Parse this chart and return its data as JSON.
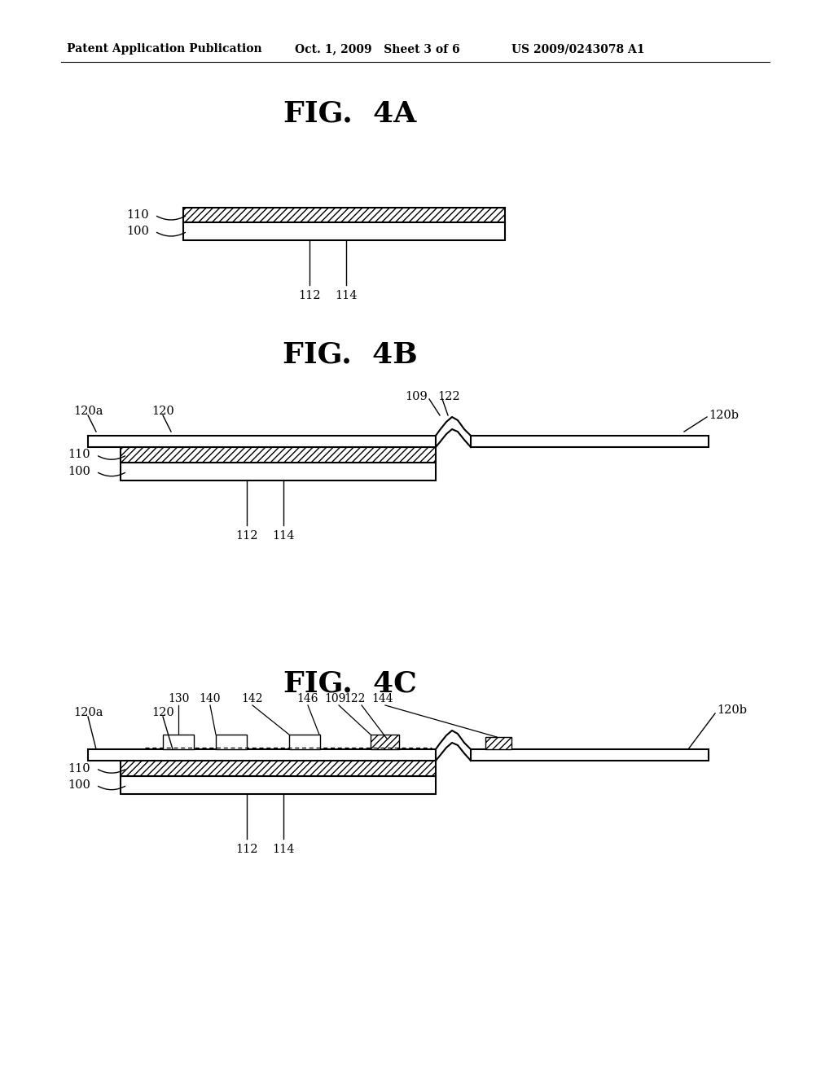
{
  "bg_color": "#ffffff",
  "header_left": "Patent Application Publication",
  "header_mid": "Oct. 1, 2009   Sheet 3 of 6",
  "header_right": "US 2009/0243078 A1",
  "fig4a_title": "FIG.  4A",
  "fig4b_title": "FIG.  4B",
  "fig4c_title": "FIG.  4C"
}
